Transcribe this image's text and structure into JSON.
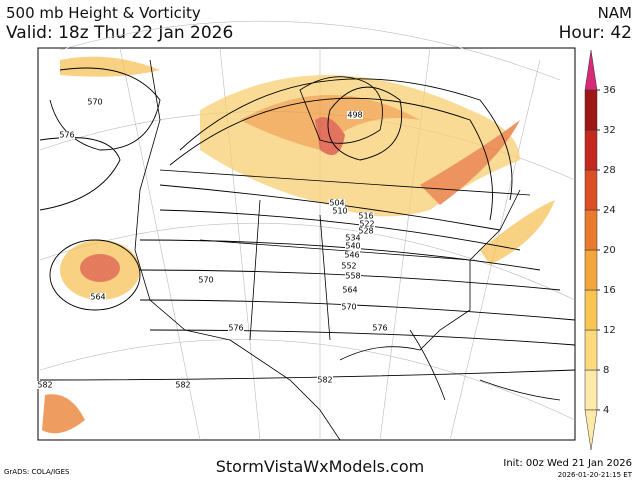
{
  "header": {
    "title": "500 mb Height & Vorticity",
    "valid": "Valid: 18z Thu 22 Jan 2026",
    "model": "NAM",
    "hour": "Hour: 42"
  },
  "colorbar": {
    "ticks": [
      4,
      8,
      12,
      16,
      20,
      24,
      28,
      32,
      36
    ],
    "colors": [
      "#fde9a8",
      "#fbd97c",
      "#f8c552",
      "#f3a63c",
      "#ea7b2c",
      "#dc4f26",
      "#c3291f",
      "#9e1616",
      "#d62a78"
    ]
  },
  "contour_labels": [
    "570",
    "576",
    "564",
    "570",
    "576",
    "582",
    "582",
    "582",
    "498",
    "504",
    "510",
    "516",
    "522",
    "528",
    "534",
    "540",
    "546",
    "552",
    "558",
    "564",
    "570",
    "576"
  ],
  "footer": {
    "credit": "GrADS: COLA/IGES",
    "site": "StormVistaWxModels.com",
    "init": "Init: 00z Wed 21 Jan 2026",
    "stamp": "2026-01-20-21:15 ET"
  }
}
